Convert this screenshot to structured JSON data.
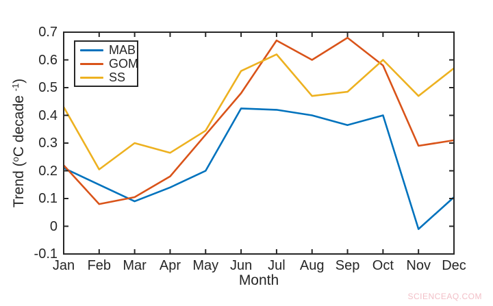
{
  "watermark": "SCIENCEAQ.COM",
  "chart_data": {
    "type": "line",
    "title": "",
    "xlabel": "Month",
    "ylabel": "Trend (°C decade⁻¹)",
    "ylabel_parts": {
      "p1": "Trend (",
      "sup1": "o",
      "p2": "C decade ",
      "sup2": "-1",
      "p3": ")"
    },
    "categories": [
      "Jan",
      "Feb",
      "Mar",
      "Apr",
      "May",
      "Jun",
      "Jul",
      "Aug",
      "Sep",
      "Oct",
      "Nov",
      "Dec"
    ],
    "series": [
      {
        "name": "MAB",
        "color": "#0072BD",
        "values": [
          0.21,
          0.15,
          0.09,
          0.14,
          0.2,
          0.425,
          0.42,
          0.4,
          0.365,
          0.4,
          -0.01,
          0.105
        ]
      },
      {
        "name": "GOM",
        "color": "#D95319",
        "values": [
          0.22,
          0.08,
          0.105,
          0.18,
          0.33,
          0.48,
          0.67,
          0.6,
          0.68,
          0.58,
          0.29,
          0.31
        ]
      },
      {
        "name": "SS",
        "color": "#EDB120",
        "values": [
          0.43,
          0.205,
          0.3,
          0.265,
          0.345,
          0.56,
          0.62,
          0.47,
          0.485,
          0.6,
          0.47,
          0.57
        ]
      }
    ],
    "ylim": [
      -0.1,
      0.7
    ],
    "yticks": [
      "-0.1",
      "0",
      "0.1",
      "0.2",
      "0.3",
      "0.4",
      "0.5",
      "0.6",
      "0.7"
    ],
    "axis_color": "#262626",
    "grid": false,
    "legend_position": "top-left"
  }
}
